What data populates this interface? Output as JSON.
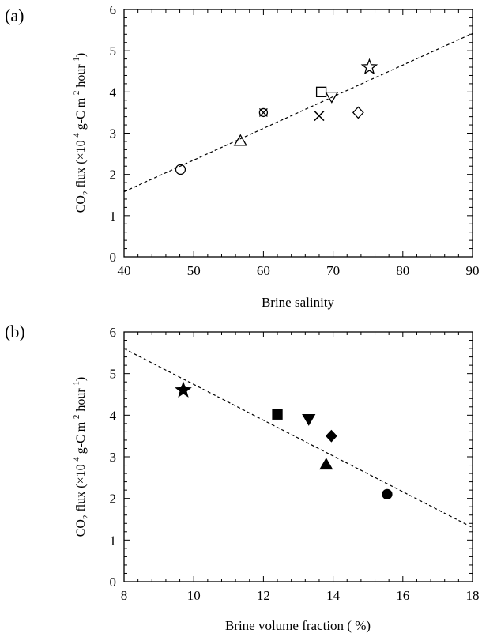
{
  "chart_data": [
    {
      "panel": "(a)",
      "type": "scatter",
      "xlabel": "Brine salinity",
      "ylabel": "CO2 flux (×10-4 g-C m-2 hour-1)",
      "xlim": [
        40,
        90
      ],
      "ylim": [
        0,
        6
      ],
      "xticks": [
        40,
        50,
        60,
        70,
        80,
        90
      ],
      "yticks": [
        0,
        1,
        2,
        3,
        4,
        5,
        6
      ],
      "grid": false,
      "marker_fill": "open",
      "points": [
        {
          "x": 48.1,
          "y": 2.12,
          "marker": "circle"
        },
        {
          "x": 56.7,
          "y": 2.82,
          "marker": "triangle-up"
        },
        {
          "x": 60.0,
          "y": 3.5,
          "marker": "circle-x"
        },
        {
          "x": 68.0,
          "y": 3.42,
          "marker": "x"
        },
        {
          "x": 68.3,
          "y": 4.0,
          "marker": "square"
        },
        {
          "x": 69.8,
          "y": 3.88,
          "marker": "triangle-down"
        },
        {
          "x": 73.6,
          "y": 3.5,
          "marker": "diamond"
        },
        {
          "x": 75.2,
          "y": 4.6,
          "marker": "star"
        }
      ],
      "fit_line": {
        "x": [
          40,
          90
        ],
        "y": [
          1.58,
          5.42
        ],
        "style": "dashed"
      }
    },
    {
      "panel": "(b)",
      "type": "scatter",
      "xlabel": "Brine volume fraction ( %)",
      "ylabel": "CO2 flux (×10-4 g-C m-2 hour-1)",
      "xlim": [
        8,
        18
      ],
      "ylim": [
        0,
        6
      ],
      "xticks": [
        8,
        10,
        12,
        14,
        16,
        18
      ],
      "yticks": [
        0,
        1,
        2,
        3,
        4,
        5,
        6
      ],
      "grid": false,
      "marker_fill": "filled",
      "points": [
        {
          "x": 9.7,
          "y": 4.6,
          "marker": "star"
        },
        {
          "x": 12.4,
          "y": 4.02,
          "marker": "square"
        },
        {
          "x": 13.3,
          "y": 3.9,
          "marker": "triangle-down"
        },
        {
          "x": 13.8,
          "y": 2.82,
          "marker": "triangle-up"
        },
        {
          "x": 13.95,
          "y": 3.5,
          "marker": "diamond"
        },
        {
          "x": 15.55,
          "y": 2.1,
          "marker": "circle"
        }
      ],
      "fit_line": {
        "x": [
          8,
          18
        ],
        "y": [
          5.6,
          1.3
        ],
        "style": "dashed"
      }
    }
  ],
  "ylabel_parts": {
    "co": "CO",
    "sub2": "2",
    "flux": " flux (",
    "times": "×",
    "ten": "10",
    "exp_m4": "-4",
    "gc": " g-C m",
    "exp_m2": "-2",
    "hour": " hour",
    "exp_m1": "-1",
    "close": ")"
  },
  "colors": {
    "axis": "#000000",
    "marker": "#000000",
    "background": "#ffffff"
  }
}
